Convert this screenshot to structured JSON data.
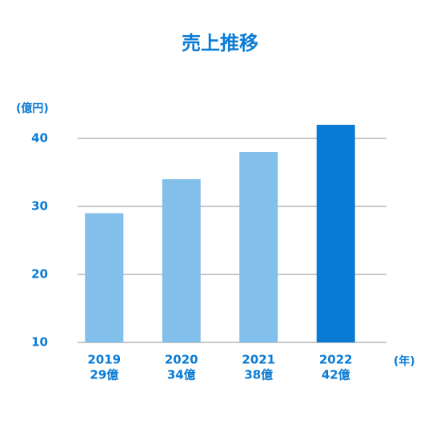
{
  "chart_data": {
    "type": "bar",
    "title": "売上推移",
    "y_label": "(億円)",
    "x_label": "(年)",
    "categories": [
      "2019",
      "2020",
      "2021",
      "2022"
    ],
    "values": [
      29,
      34,
      38,
      42
    ],
    "value_labels": [
      "29億",
      "34億",
      "38億",
      "42億"
    ],
    "colors": [
      "#82bfeb",
      "#82bfeb",
      "#82bfeb",
      "#0a7bd4"
    ],
    "ylim": [
      10,
      43
    ],
    "yticks": [
      10,
      20,
      30,
      40
    ],
    "grid": true
  }
}
